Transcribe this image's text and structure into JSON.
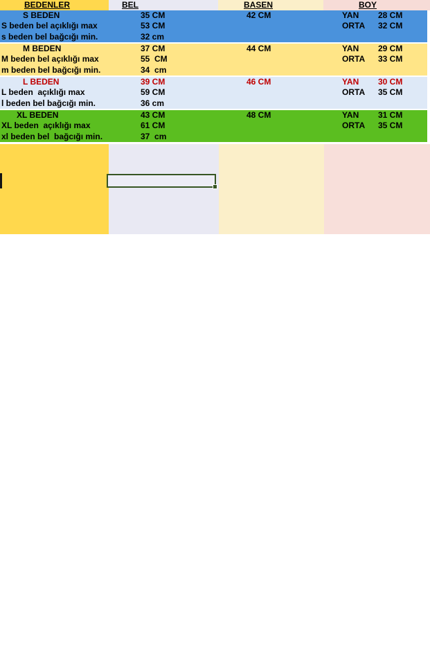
{
  "header": {
    "columns": [
      {
        "label": "BEDENLER"
      },
      {
        "label": "BEL"
      },
      {
        "label": "BASEN"
      },
      {
        "label": "BOY"
      }
    ]
  },
  "sections": [
    {
      "name": "S",
      "rows": [
        {
          "c1": "S BEDEN",
          "bel": "35 CM",
          "basen": "42 CM",
          "boy_label": "YAN",
          "boy_value": "28 CM"
        },
        {
          "c1": "S beden bel açıklığı max",
          "bel": "53 CM",
          "boy_label": "ORTA",
          "boy_value": "32 CM"
        },
        {
          "c1": "s beden bel bağcığı min.",
          "bel": "32 cm"
        }
      ]
    },
    {
      "name": "M",
      "rows": [
        {
          "c1": "M BEDEN",
          "bel": "37 CM",
          "basen": "44 CM",
          "boy_label": "YAN",
          "boy_value": "29 CM"
        },
        {
          "c1": "M beden bel açıklığı max",
          "bel": "55  CM",
          "boy_label": "ORTA",
          "boy_value": "33 CM"
        },
        {
          "c1": "m beden bel bağcığı min.",
          "bel": "34  cm"
        }
      ]
    },
    {
      "name": "L",
      "rows": [
        {
          "c1": "L BEDEN",
          "bel": "39 CM",
          "basen": "46 CM",
          "boy_label": "YAN",
          "boy_value": "30 CM"
        },
        {
          "c1": "L beden  açıklığı max",
          "bel": "59 CM",
          "boy_label": "ORTA",
          "boy_value": "35 CM"
        },
        {
          "c1": "l beden bel bağcığı min.",
          "bel": "36 cm"
        }
      ]
    },
    {
      "name": "XL",
      "rows": [
        {
          "c1": "XL BEDEN",
          "bel": "43 CM",
          "basen": "48 CM",
          "boy_label": "YAN",
          "boy_value": "31 CM"
        },
        {
          "c1": "XL beden  açıklığı max",
          "bel": "61 CM",
          "boy_label": "ORTA",
          "boy_value": "35 CM"
        },
        {
          "c1": "xl beden bel  bağcığı min.",
          "bel": "37  cm"
        }
      ]
    }
  ],
  "colors": {
    "header_col1_yellow": "#FFD84D",
    "header_col2_lavender": "#E9E9F3",
    "header_col3_cream": "#FBEFC9",
    "header_col4_pink": "#F7DCD7",
    "section_s_blue": "#4A92DC",
    "section_m_yellow": "#FFE587",
    "section_l_lightblue": "#DEE9F7",
    "section_xl_green": "#5BBE20",
    "highlight_red_text": "#C00000",
    "selection_border_green": "#375623"
  }
}
